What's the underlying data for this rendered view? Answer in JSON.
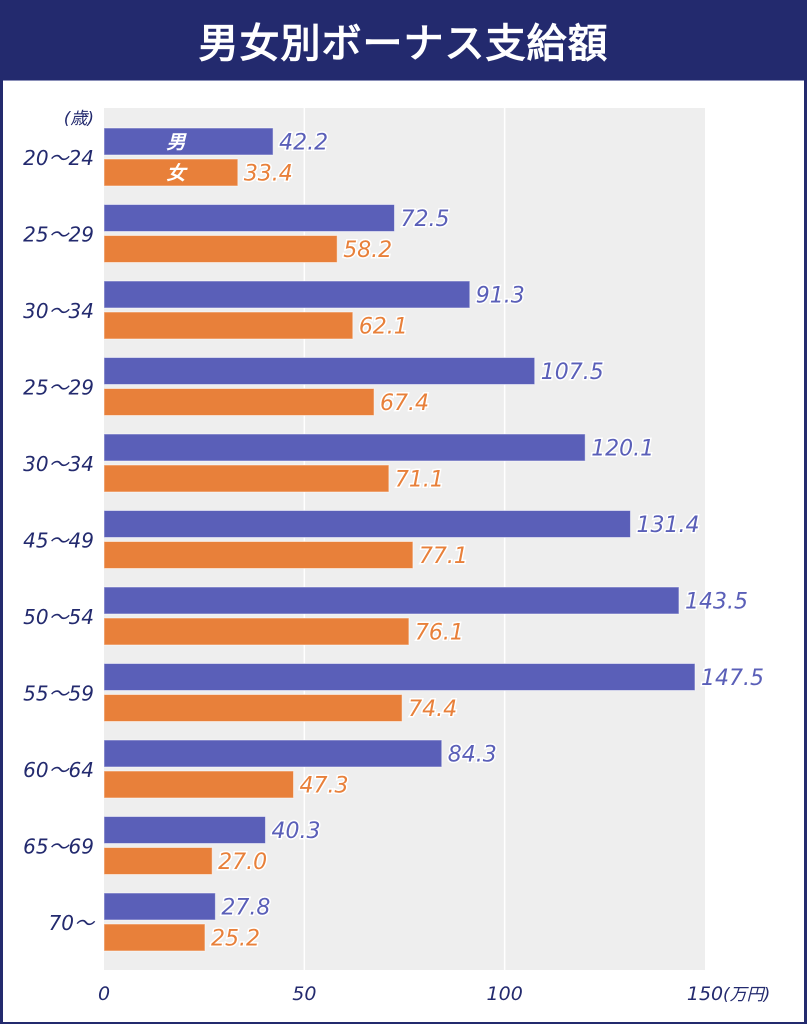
{
  "header": {
    "title": "男女別ボーナス支給額"
  },
  "colors": {
    "header_bg": "#232a6e",
    "male": "#5a5fb8",
    "female": "#e8803a",
    "plot_bg": "#eeeeee",
    "axis_text": "#232a6e"
  },
  "chart_data": {
    "type": "bar",
    "orientation": "horizontal",
    "title": "男女別ボーナス支給額",
    "ylabel": "(歳)",
    "xlabel": "(万円)",
    "xlim": [
      0,
      150
    ],
    "xticks": [
      0,
      50,
      100,
      150
    ],
    "xtick_labels": [
      "0",
      "50",
      "100",
      "150"
    ],
    "grid": true,
    "categories": [
      "20〜24",
      "25〜29",
      "30〜34",
      "25〜29",
      "30〜34",
      "45〜49",
      "50〜54",
      "55〜59",
      "60〜64",
      "65〜69",
      "70〜"
    ],
    "series": [
      {
        "name": "男",
        "color": "#5a5fb8",
        "values": [
          42.2,
          72.5,
          91.3,
          107.5,
          120.1,
          131.4,
          143.5,
          147.5,
          84.3,
          40.3,
          27.8
        ],
        "labels": [
          "42.2",
          "72.5",
          "91.3",
          "107.5",
          "120.1",
          "131.4",
          "143.5",
          "147.5",
          "84.3",
          "40.3",
          "27.8"
        ]
      },
      {
        "name": "女",
        "color": "#e8803a",
        "values": [
          33.4,
          58.2,
          62.1,
          67.4,
          71.1,
          77.1,
          76.1,
          74.4,
          47.3,
          27.0,
          25.2
        ],
        "labels": [
          "33.4",
          "58.2",
          "62.1",
          "67.4",
          "71.1",
          "77.1",
          "76.1",
          "74.4",
          "47.3",
          "27.0",
          "25.2"
        ]
      }
    ],
    "legend": "inline-on-first-bars"
  }
}
